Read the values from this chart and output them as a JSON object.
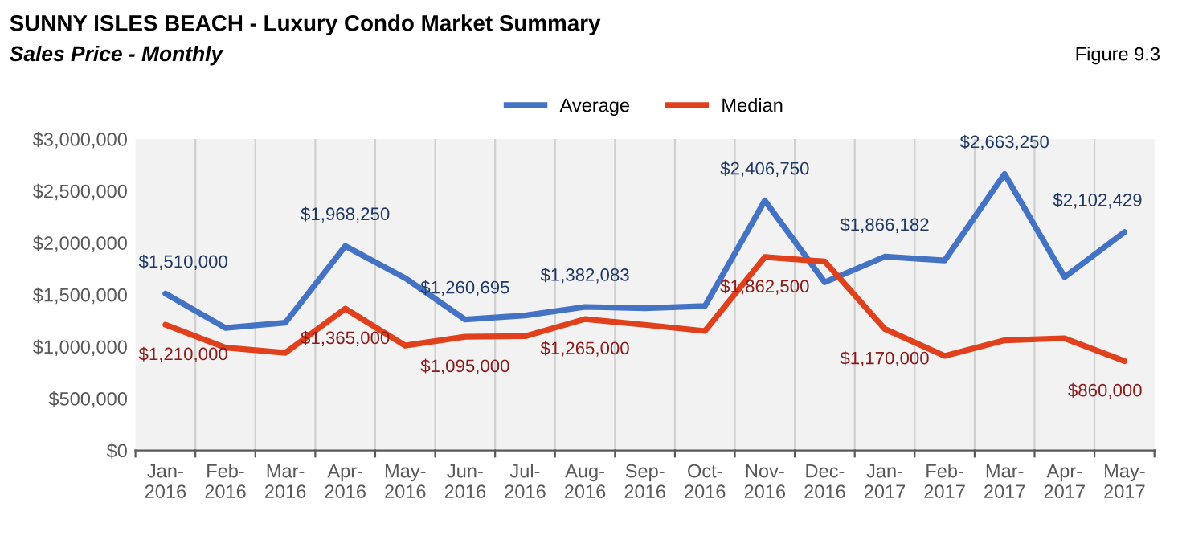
{
  "chart_data": {
    "type": "line",
    "title": "SUNNY ISLES BEACH - Luxury Condo Market Summary",
    "subtitle": "Sales Price - Monthly",
    "annotations": [
      "Figure 9.3"
    ],
    "categories": [
      "Jan-\n2016",
      "Feb-\n2016",
      "Mar-\n2016",
      "Apr-\n2016",
      "May-\n2016",
      "Jun-\n2016",
      "Jul-\n2016",
      "Aug-\n2016",
      "Sep-\n2016",
      "Oct-\n2016",
      "Nov-\n2016",
      "Dec-\n2016",
      "Jan-\n2017",
      "Feb-\n2017",
      "Mar-\n2017",
      "Apr-\n2017",
      "May-\n2017"
    ],
    "series": [
      {
        "name": "Average",
        "color": "#4472c4",
        "values": [
          1510000,
          1180000,
          1230000,
          1968250,
          1660000,
          1260695,
          1300000,
          1382083,
          1370000,
          1390000,
          2406750,
          1620000,
          1866182,
          1830000,
          2663250,
          1670000,
          2102429
        ],
        "value_labels": [
          "$1,510,000",
          null,
          null,
          "$1,968,250",
          null,
          "$1,260,695",
          null,
          "$1,382,083",
          null,
          null,
          "$2,406,750",
          null,
          "$1,866,182",
          null,
          "$2,663,250",
          null,
          "$2,102,429"
        ]
      },
      {
        "name": "Median",
        "color": "#e0401b",
        "values": [
          1210000,
          990000,
          940000,
          1365000,
          1010000,
          1095000,
          1100000,
          1265000,
          1210000,
          1150000,
          1862500,
          1820000,
          1170000,
          910000,
          1060000,
          1080000,
          860000
        ],
        "value_labels": [
          "$1,210,000",
          null,
          null,
          "$1,365,000",
          null,
          "$1,095,000",
          null,
          "$1,265,000",
          null,
          null,
          "$1,862,500",
          null,
          "$1,170,000",
          null,
          null,
          null,
          "$860,000"
        ]
      }
    ],
    "ylim": [
      0,
      3000000
    ],
    "yticks": [
      {
        "value": 0,
        "label": "$0"
      },
      {
        "value": 500000,
        "label": "$500,000"
      },
      {
        "value": 1000000,
        "label": "$1,000,000"
      },
      {
        "value": 1500000,
        "label": "$1,500,000"
      },
      {
        "value": 2000000,
        "label": "$2,000,000"
      },
      {
        "value": 2500000,
        "label": "$2,500,000"
      },
      {
        "value": 3000000,
        "label": "$3,000,000"
      }
    ],
    "grid": "x",
    "legend": "top",
    "marker": "none",
    "line_style": "solid"
  }
}
